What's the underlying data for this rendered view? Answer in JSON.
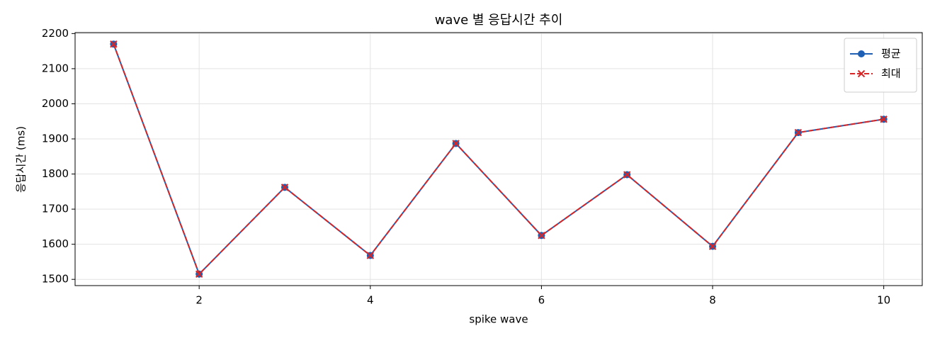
{
  "chart_data": {
    "type": "line",
    "title": "wave 별 응답시간 추이",
    "x_label": "spike wave",
    "y_label": "응답시간 (ms)",
    "x": [
      1,
      2,
      3,
      4,
      5,
      6,
      7,
      8,
      9,
      10
    ],
    "series": [
      {
        "name": "평균",
        "color": "#1f5fb4",
        "marker": "o",
        "linestyle": "solid",
        "values": [
          2170,
          1515,
          1762,
          1568,
          1887,
          1625,
          1798,
          1594,
          1918,
          1956
        ]
      },
      {
        "name": "최대",
        "color": "#d62728",
        "marker": "x",
        "linestyle": "dashed",
        "values": [
          2170,
          1515,
          1762,
          1568,
          1887,
          1625,
          1798,
          1594,
          1918,
          1956
        ]
      }
    ],
    "xlim": [
      0.55,
      10.45
    ],
    "xticks": [
      2,
      4,
      6,
      8,
      10
    ],
    "ylim": [
      1482.25,
      2202.75
    ],
    "yticks": [
      1500,
      1600,
      1700,
      1800,
      1900,
      2000,
      2100,
      2200
    ],
    "grid": true,
    "legend": "upper right"
  }
}
